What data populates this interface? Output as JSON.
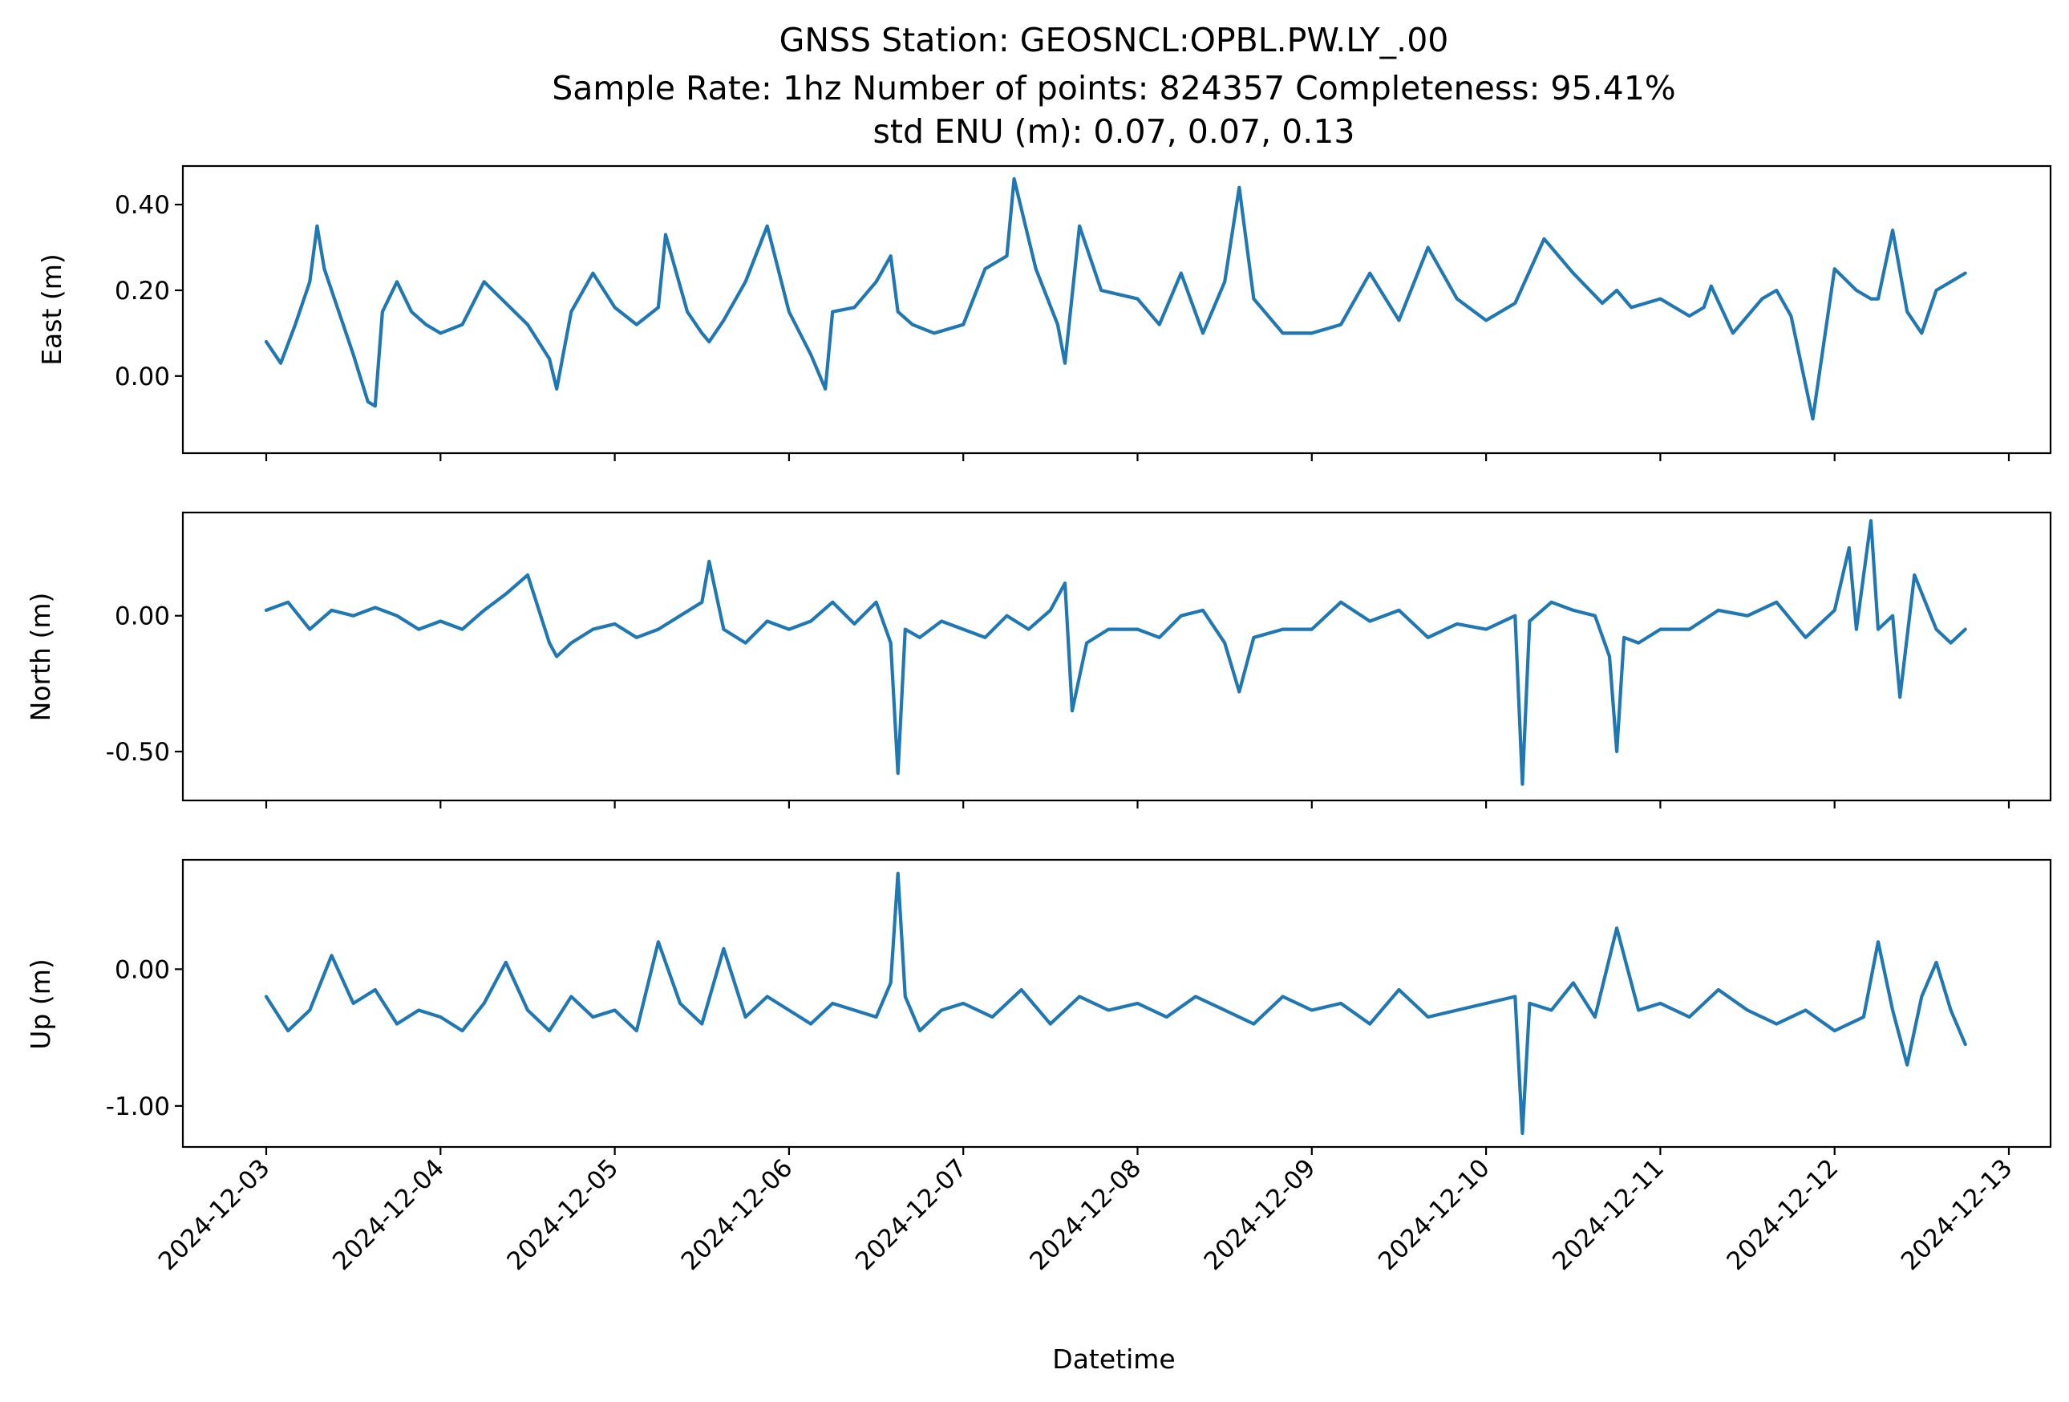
{
  "figure": {
    "title_lines": [
      "GNSS Station: GEOSNCL:OPBL.PW.LY_.00",
      "Sample Rate: 1hz   Number of points: 824357    Completeness:  95.41%",
      "std ENU (m):  0.07, 0.07, 0.13"
    ],
    "line_color": "#1f77b4"
  },
  "chart_data": [
    {
      "type": "line",
      "id": "east",
      "ylabel": "East (m)",
      "xlabel": "",
      "x_range": [
        "2024-12-03T00:00",
        "2024-12-12T18:00"
      ],
      "ylim": [
        -0.18,
        0.49
      ],
      "yticks": [
        0.0,
        0.2,
        0.4
      ],
      "ytick_labels": [
        "0.00",
        "0.20",
        "0.40"
      ],
      "grid": false,
      "series": [
        {
          "x": [
            "2024-12-03T00:00",
            "2024-12-03T02:00",
            "2024-12-03T04:00",
            "2024-12-03T06:00",
            "2024-12-03T07:00",
            "2024-12-03T08:00",
            "2024-12-03T10:00",
            "2024-12-03T12:00",
            "2024-12-03T14:00",
            "2024-12-03T15:00",
            "2024-12-03T16:00",
            "2024-12-03T18:00",
            "2024-12-03T20:00",
            "2024-12-03T22:00",
            "2024-12-04T00:00",
            "2024-12-04T03:00",
            "2024-12-04T06:00",
            "2024-12-04T09:00",
            "2024-12-04T12:00",
            "2024-12-04T15:00",
            "2024-12-04T16:00",
            "2024-12-04T18:00",
            "2024-12-04T21:00",
            "2024-12-05T00:00",
            "2024-12-05T03:00",
            "2024-12-05T06:00",
            "2024-12-05T07:00",
            "2024-12-05T10:00",
            "2024-12-05T12:00",
            "2024-12-05T13:00",
            "2024-12-05T15:00",
            "2024-12-05T18:00",
            "2024-12-05T21:00",
            "2024-12-06T00:00",
            "2024-12-06T03:00",
            "2024-12-06T05:00",
            "2024-12-06T06:00",
            "2024-12-06T09:00",
            "2024-12-06T12:00",
            "2024-12-06T14:00",
            "2024-12-06T15:00",
            "2024-12-06T17:00",
            "2024-12-06T20:00",
            "2024-12-07T00:00",
            "2024-12-07T03:00",
            "2024-12-07T06:00",
            "2024-12-07T07:00",
            "2024-12-07T10:00",
            "2024-12-07T13:00",
            "2024-12-07T14:00",
            "2024-12-07T16:00",
            "2024-12-07T19:00",
            "2024-12-08T00:00",
            "2024-12-08T03:00",
            "2024-12-08T06:00",
            "2024-12-08T09:00",
            "2024-12-08T12:00",
            "2024-12-08T14:00",
            "2024-12-08T16:00",
            "2024-12-08T20:00",
            "2024-12-09T00:00",
            "2024-12-09T04:00",
            "2024-12-09T08:00",
            "2024-12-09T12:00",
            "2024-12-09T16:00",
            "2024-12-09T20:00",
            "2024-12-10T00:00",
            "2024-12-10T04:00",
            "2024-12-10T08:00",
            "2024-12-10T12:00",
            "2024-12-10T16:00",
            "2024-12-10T18:00",
            "2024-12-10T19:00",
            "2024-12-10T20:00",
            "2024-12-11T00:00",
            "2024-12-11T04:00",
            "2024-12-11T06:00",
            "2024-12-11T07:00",
            "2024-12-11T10:00",
            "2024-12-11T14:00",
            "2024-12-11T16:00",
            "2024-12-11T18:00",
            "2024-12-11T21:00",
            "2024-12-12T00:00",
            "2024-12-12T03:00",
            "2024-12-12T05:00",
            "2024-12-12T06:00",
            "2024-12-12T08:00",
            "2024-12-12T10:00",
            "2024-12-12T12:00",
            "2024-12-12T14:00",
            "2024-12-12T16:00",
            "2024-12-12T18:00"
          ],
          "values": [
            0.08,
            0.03,
            0.12,
            0.22,
            0.35,
            0.25,
            0.15,
            0.05,
            -0.06,
            -0.07,
            0.15,
            0.22,
            0.15,
            0.12,
            0.1,
            0.12,
            0.22,
            0.17,
            0.12,
            0.04,
            -0.03,
            0.15,
            0.24,
            0.16,
            0.12,
            0.16,
            0.33,
            0.15,
            0.1,
            0.08,
            0.13,
            0.22,
            0.35,
            0.15,
            0.05,
            -0.03,
            0.15,
            0.16,
            0.22,
            0.28,
            0.15,
            0.12,
            0.1,
            0.12,
            0.25,
            0.28,
            0.46,
            0.25,
            0.12,
            0.03,
            0.35,
            0.2,
            0.18,
            0.12,
            0.24,
            0.1,
            0.22,
            0.44,
            0.18,
            0.1,
            0.1,
            0.12,
            0.24,
            0.13,
            0.3,
            0.18,
            0.13,
            0.17,
            0.32,
            0.24,
            0.17,
            0.2,
            0.18,
            0.16,
            0.18,
            0.14,
            0.16,
            0.21,
            0.1,
            0.18,
            0.2,
            0.14,
            -0.1,
            0.25,
            0.2,
            0.18,
            0.18,
            0.34,
            0.15,
            0.1,
            0.2,
            0.22,
            0.24
          ]
        }
      ]
    },
    {
      "type": "line",
      "id": "north",
      "ylabel": "North (m)",
      "xlabel": "",
      "x_range": [
        "2024-12-03T00:00",
        "2024-12-12T18:00"
      ],
      "ylim": [
        -0.68,
        0.38
      ],
      "yticks": [
        -0.5,
        0.0
      ],
      "ytick_labels": [
        "-0.50",
        "0.00"
      ],
      "grid": false,
      "series": [
        {
          "x": [
            "2024-12-03T00:00",
            "2024-12-03T03:00",
            "2024-12-03T06:00",
            "2024-12-03T09:00",
            "2024-12-03T12:00",
            "2024-12-03T15:00",
            "2024-12-03T18:00",
            "2024-12-03T21:00",
            "2024-12-04T00:00",
            "2024-12-04T03:00",
            "2024-12-04T06:00",
            "2024-12-04T09:00",
            "2024-12-04T12:00",
            "2024-12-04T15:00",
            "2024-12-04T16:00",
            "2024-12-04T18:00",
            "2024-12-04T21:00",
            "2024-12-05T00:00",
            "2024-12-05T03:00",
            "2024-12-05T06:00",
            "2024-12-05T09:00",
            "2024-12-05T12:00",
            "2024-12-05T13:00",
            "2024-12-05T15:00",
            "2024-12-05T18:00",
            "2024-12-05T21:00",
            "2024-12-06T00:00",
            "2024-12-06T03:00",
            "2024-12-06T06:00",
            "2024-12-06T09:00",
            "2024-12-06T12:00",
            "2024-12-06T14:00",
            "2024-12-06T15:00",
            "2024-12-06T16:00",
            "2024-12-06T18:00",
            "2024-12-06T21:00",
            "2024-12-07T00:00",
            "2024-12-07T03:00",
            "2024-12-07T06:00",
            "2024-12-07T09:00",
            "2024-12-07T12:00",
            "2024-12-07T14:00",
            "2024-12-07T15:00",
            "2024-12-07T17:00",
            "2024-12-07T20:00",
            "2024-12-08T00:00",
            "2024-12-08T03:00",
            "2024-12-08T06:00",
            "2024-12-08T09:00",
            "2024-12-08T12:00",
            "2024-12-08T14:00",
            "2024-12-08T16:00",
            "2024-12-08T20:00",
            "2024-12-09T00:00",
            "2024-12-09T04:00",
            "2024-12-09T08:00",
            "2024-12-09T12:00",
            "2024-12-09T16:00",
            "2024-12-09T20:00",
            "2024-12-10T00:00",
            "2024-12-10T04:00",
            "2024-12-10T05:00",
            "2024-12-10T06:00",
            "2024-12-10T09:00",
            "2024-12-10T12:00",
            "2024-12-10T15:00",
            "2024-12-10T17:00",
            "2024-12-10T18:00",
            "2024-12-10T19:00",
            "2024-12-10T21:00",
            "2024-12-11T00:00",
            "2024-12-11T04:00",
            "2024-12-11T08:00",
            "2024-12-11T12:00",
            "2024-12-11T16:00",
            "2024-12-11T20:00",
            "2024-12-12T00:00",
            "2024-12-12T02:00",
            "2024-12-12T03:00",
            "2024-12-12T05:00",
            "2024-12-12T06:00",
            "2024-12-12T08:00",
            "2024-12-12T09:00",
            "2024-12-12T11:00",
            "2024-12-12T14:00",
            "2024-12-12T16:00",
            "2024-12-12T18:00"
          ],
          "values": [
            0.02,
            0.05,
            -0.05,
            0.02,
            0.0,
            0.03,
            0.0,
            -0.05,
            -0.02,
            -0.05,
            0.02,
            0.08,
            0.15,
            -0.1,
            -0.15,
            -0.1,
            -0.05,
            -0.03,
            -0.08,
            -0.05,
            0.0,
            0.05,
            0.2,
            -0.05,
            -0.1,
            -0.02,
            -0.05,
            -0.02,
            0.05,
            -0.03,
            0.05,
            -0.1,
            -0.58,
            -0.05,
            -0.08,
            -0.02,
            -0.05,
            -0.08,
            0.0,
            -0.05,
            0.02,
            0.12,
            -0.35,
            -0.1,
            -0.05,
            -0.05,
            -0.08,
            0.0,
            0.02,
            -0.1,
            -0.28,
            -0.08,
            -0.05,
            -0.05,
            0.05,
            -0.02,
            0.02,
            -0.08,
            -0.03,
            -0.05,
            0.0,
            -0.62,
            -0.02,
            0.05,
            0.02,
            0.0,
            -0.15,
            -0.5,
            -0.08,
            -0.1,
            -0.05,
            -0.05,
            0.02,
            0.0,
            0.05,
            -0.08,
            0.02,
            0.25,
            -0.05,
            0.35,
            -0.05,
            0.0,
            -0.3,
            0.15,
            -0.05,
            -0.1,
            -0.05
          ]
        }
      ]
    },
    {
      "type": "line",
      "id": "up",
      "ylabel": "Up (m)",
      "xlabel": "Datetime",
      "x_range": [
        "2024-12-03T00:00",
        "2024-12-12T18:00"
      ],
      "ylim": [
        -1.3,
        0.8
      ],
      "yticks": [
        -1.0,
        0.0
      ],
      "ytick_labels": [
        "-1.00",
        "0.00"
      ],
      "xticks": [
        "2024-12-03",
        "2024-12-04",
        "2024-12-05",
        "2024-12-06",
        "2024-12-07",
        "2024-12-08",
        "2024-12-09",
        "2024-12-10",
        "2024-12-11",
        "2024-12-12",
        "2024-12-13"
      ],
      "grid": false,
      "series": [
        {
          "x": [
            "2024-12-03T00:00",
            "2024-12-03T03:00",
            "2024-12-03T06:00",
            "2024-12-03T09:00",
            "2024-12-03T12:00",
            "2024-12-03T15:00",
            "2024-12-03T18:00",
            "2024-12-03T21:00",
            "2024-12-04T00:00",
            "2024-12-04T03:00",
            "2024-12-04T06:00",
            "2024-12-04T09:00",
            "2024-12-04T12:00",
            "2024-12-04T15:00",
            "2024-12-04T18:00",
            "2024-12-04T21:00",
            "2024-12-05T00:00",
            "2024-12-05T03:00",
            "2024-12-05T06:00",
            "2024-12-05T09:00",
            "2024-12-05T12:00",
            "2024-12-05T15:00",
            "2024-12-05T18:00",
            "2024-12-05T21:00",
            "2024-12-06T00:00",
            "2024-12-06T03:00",
            "2024-12-06T06:00",
            "2024-12-06T09:00",
            "2024-12-06T12:00",
            "2024-12-06T14:00",
            "2024-12-06T15:00",
            "2024-12-06T16:00",
            "2024-12-06T18:00",
            "2024-12-06T21:00",
            "2024-12-07T00:00",
            "2024-12-07T04:00",
            "2024-12-07T08:00",
            "2024-12-07T12:00",
            "2024-12-07T16:00",
            "2024-12-07T20:00",
            "2024-12-08T00:00",
            "2024-12-08T04:00",
            "2024-12-08T08:00",
            "2024-12-08T12:00",
            "2024-12-08T16:00",
            "2024-12-08T20:00",
            "2024-12-09T00:00",
            "2024-12-09T04:00",
            "2024-12-09T08:00",
            "2024-12-09T12:00",
            "2024-12-09T16:00",
            "2024-12-09T20:00",
            "2024-12-10T00:00",
            "2024-12-10T04:00",
            "2024-12-10T05:00",
            "2024-12-10T06:00",
            "2024-12-10T09:00",
            "2024-12-10T12:00",
            "2024-12-10T15:00",
            "2024-12-10T18:00",
            "2024-12-10T21:00",
            "2024-12-11T00:00",
            "2024-12-11T04:00",
            "2024-12-11T08:00",
            "2024-12-11T12:00",
            "2024-12-11T16:00",
            "2024-12-11T20:00",
            "2024-12-12T00:00",
            "2024-12-12T04:00",
            "2024-12-12T06:00",
            "2024-12-12T08:00",
            "2024-12-12T10:00",
            "2024-12-12T12:00",
            "2024-12-12T14:00",
            "2024-12-12T16:00",
            "2024-12-12T18:00"
          ],
          "values": [
            -0.2,
            -0.45,
            -0.3,
            0.1,
            -0.25,
            -0.15,
            -0.4,
            -0.3,
            -0.35,
            -0.45,
            -0.25,
            0.05,
            -0.3,
            -0.45,
            -0.2,
            -0.35,
            -0.3,
            -0.45,
            0.2,
            -0.25,
            -0.4,
            0.15,
            -0.35,
            -0.2,
            -0.3,
            -0.4,
            -0.25,
            -0.3,
            -0.35,
            -0.1,
            0.7,
            -0.2,
            -0.45,
            -0.3,
            -0.25,
            -0.35,
            -0.15,
            -0.4,
            -0.2,
            -0.3,
            -0.25,
            -0.35,
            -0.2,
            -0.3,
            -0.4,
            -0.2,
            -0.3,
            -0.25,
            -0.4,
            -0.15,
            -0.35,
            -0.3,
            -0.25,
            -0.2,
            -1.2,
            -0.25,
            -0.3,
            -0.1,
            -0.35,
            0.3,
            -0.3,
            -0.25,
            -0.35,
            -0.15,
            -0.3,
            -0.4,
            -0.3,
            -0.45,
            -0.35,
            0.2,
            -0.3,
            -0.7,
            -0.2,
            0.05,
            -0.3,
            -0.55
          ]
        }
      ]
    }
  ]
}
